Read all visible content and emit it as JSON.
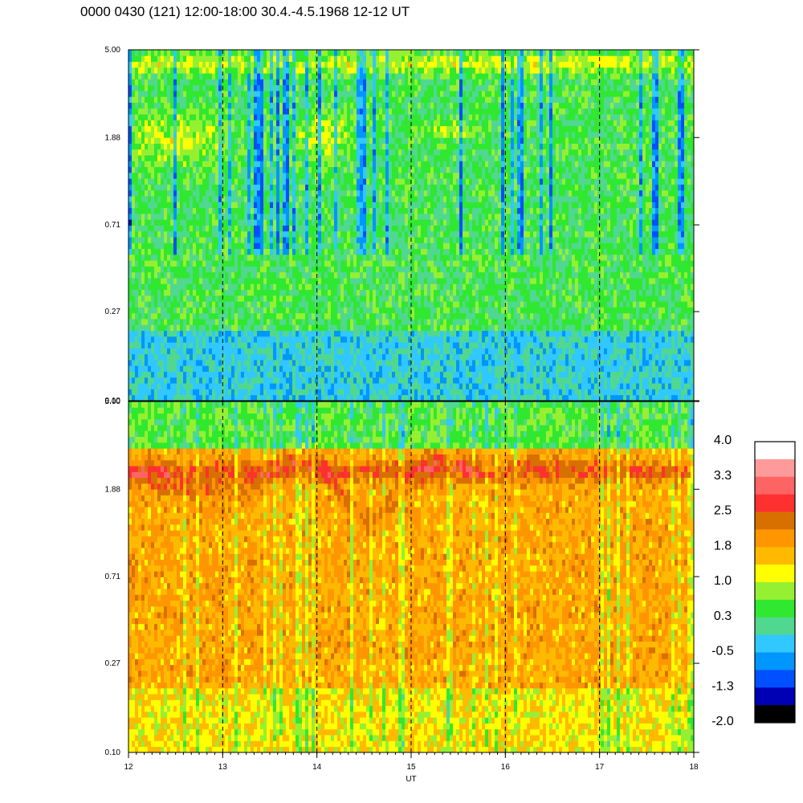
{
  "header": {
    "title": "0000 0430 (121) 12:00-18:00 30.4.-4.5.1968  12-12 UT"
  },
  "chart_data": {
    "type": "heatmap",
    "title": "0000 0430 (121) 12:00-18:00 30.4.-4.5.1968  12-12 UT",
    "xlabel": "UT",
    "x_ticks": [
      "12",
      "13",
      "14",
      "15",
      "16",
      "17",
      "18"
    ],
    "xlim": [
      12,
      18
    ],
    "y_scale": "log",
    "y_ticks": [
      "0.10",
      "0.27",
      "0.71",
      "1.88",
      "5.00"
    ],
    "ylim": [
      0.1,
      5.0
    ],
    "grid": "dashed vertical lines at each hour",
    "panels": [
      {
        "description": "upper",
        "dominant_level": 0.3,
        "features": [
          {
            "type": "band",
            "level": 1.0,
            "y_center": 4.3
          },
          {
            "type": "patch",
            "level": 1.0,
            "x": [
              12.1,
              12.9
            ],
            "y": [
              1.5,
              2.3
            ]
          },
          {
            "type": "patch",
            "level": 1.0,
            "x": [
              13.8,
              14.3
            ],
            "y": [
              1.5,
              2.3
            ]
          },
          {
            "type": "patch",
            "level": 1.0,
            "x": [
              15.2,
              15.6
            ],
            "y": [
              1.9,
              2.2
            ]
          }
        ]
      },
      {
        "description": "lower",
        "dominant_level": 1.8,
        "features": [
          {
            "type": "band",
            "level": 2.5,
            "y_center": 2.3
          },
          {
            "type": "arc",
            "level": 2.5,
            "x": [
              12.0,
              13.5
            ],
            "y": [
              1.1,
              2.2
            ]
          }
        ]
      }
    ],
    "colorbar": {
      "labels": [
        "4.0",
        "3.3",
        "2.5",
        "1.8",
        "1.0",
        "0.3",
        "-0.5",
        "-1.3",
        "-2.0"
      ],
      "colors_top_to_bottom": [
        "#ffffff",
        "#ff9a9a",
        "#ff6464",
        "#ff3030",
        "#d87000",
        "#ff9600",
        "#ffba00",
        "#ffff00",
        "#96f032",
        "#30e830",
        "#50d890",
        "#30c8ff",
        "#0096ff",
        "#0050ff",
        "#0000b4",
        "#000000"
      ]
    }
  }
}
